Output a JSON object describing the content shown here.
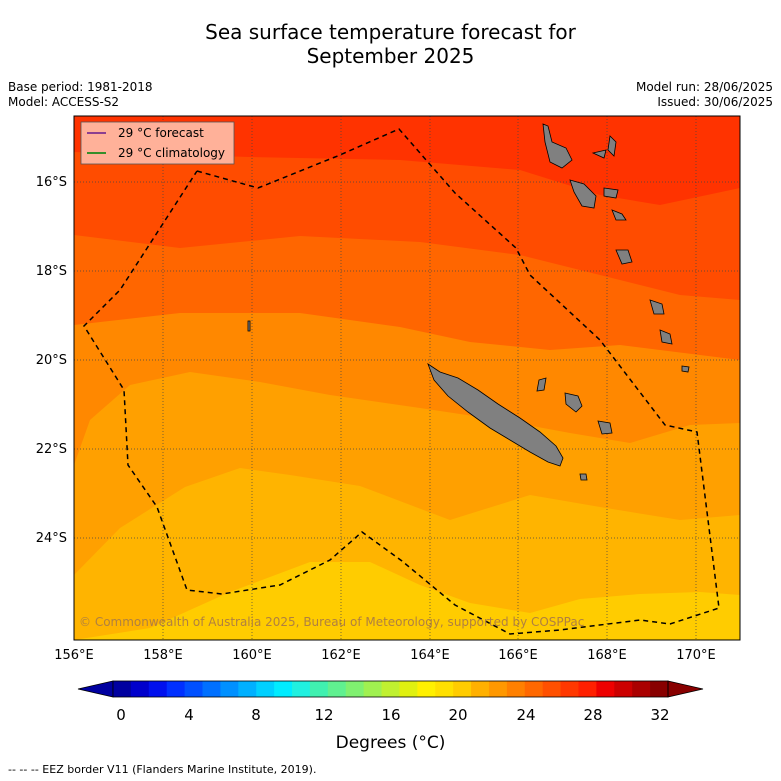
{
  "title": {
    "line1": "Sea surface temperature forecast for",
    "line2": "September 2025"
  },
  "meta": {
    "base_period": "Base period: 1981-2018",
    "model": "Model: ACCESS-S2",
    "model_run": "Model run: 28/06/2025",
    "issued": "Issued: 30/06/2025"
  },
  "legend": {
    "forecast": "29 °C  forecast",
    "climatology": "29 °C  climatology",
    "forecast_color": "#7b2f8f",
    "climatology_color": "#1a8a1a"
  },
  "axes": {
    "lon_ticks": [
      "156°E",
      "158°E",
      "160°E",
      "162°E",
      "164°E",
      "166°E",
      "168°E",
      "170°E"
    ],
    "lat_ticks": [
      "16°S",
      "18°S",
      "20°S",
      "22°S",
      "24°S"
    ]
  },
  "copyright": "© Commonwealth of Australia 2025, Bureau of Meteorology, supported by COSPPac",
  "colorbar": {
    "ticks": [
      "0",
      "4",
      "8",
      "12",
      "16",
      "20",
      "24",
      "28",
      "32"
    ],
    "label": "Degrees (°C)",
    "colors": [
      "#0000a0",
      "#0000cc",
      "#0010ee",
      "#0030ff",
      "#0050ff",
      "#0070ff",
      "#0090ff",
      "#00b0ff",
      "#00d0ff",
      "#00ecff",
      "#20f0e0",
      "#40f0b0",
      "#60f090",
      "#80f070",
      "#a0f050",
      "#c0f030",
      "#e0f010",
      "#fff000",
      "#ffe000",
      "#ffcc00",
      "#ffb000",
      "#ff9800",
      "#ff8000",
      "#ff6800",
      "#ff5000",
      "#ff3800",
      "#ff2000",
      "#ee0000",
      "#cc0000",
      "#aa0000",
      "#880000"
    ]
  },
  "sst_bands": [
    "#ff3300",
    "#ff4c00",
    "#ff6600",
    "#ff8800",
    "#ffa000",
    "#ffb400",
    "#ffcc00",
    "#ffe400"
  ],
  "footer": "--  --  -- EEZ border V11 (Flanders Marine Institute, 2019)."
}
